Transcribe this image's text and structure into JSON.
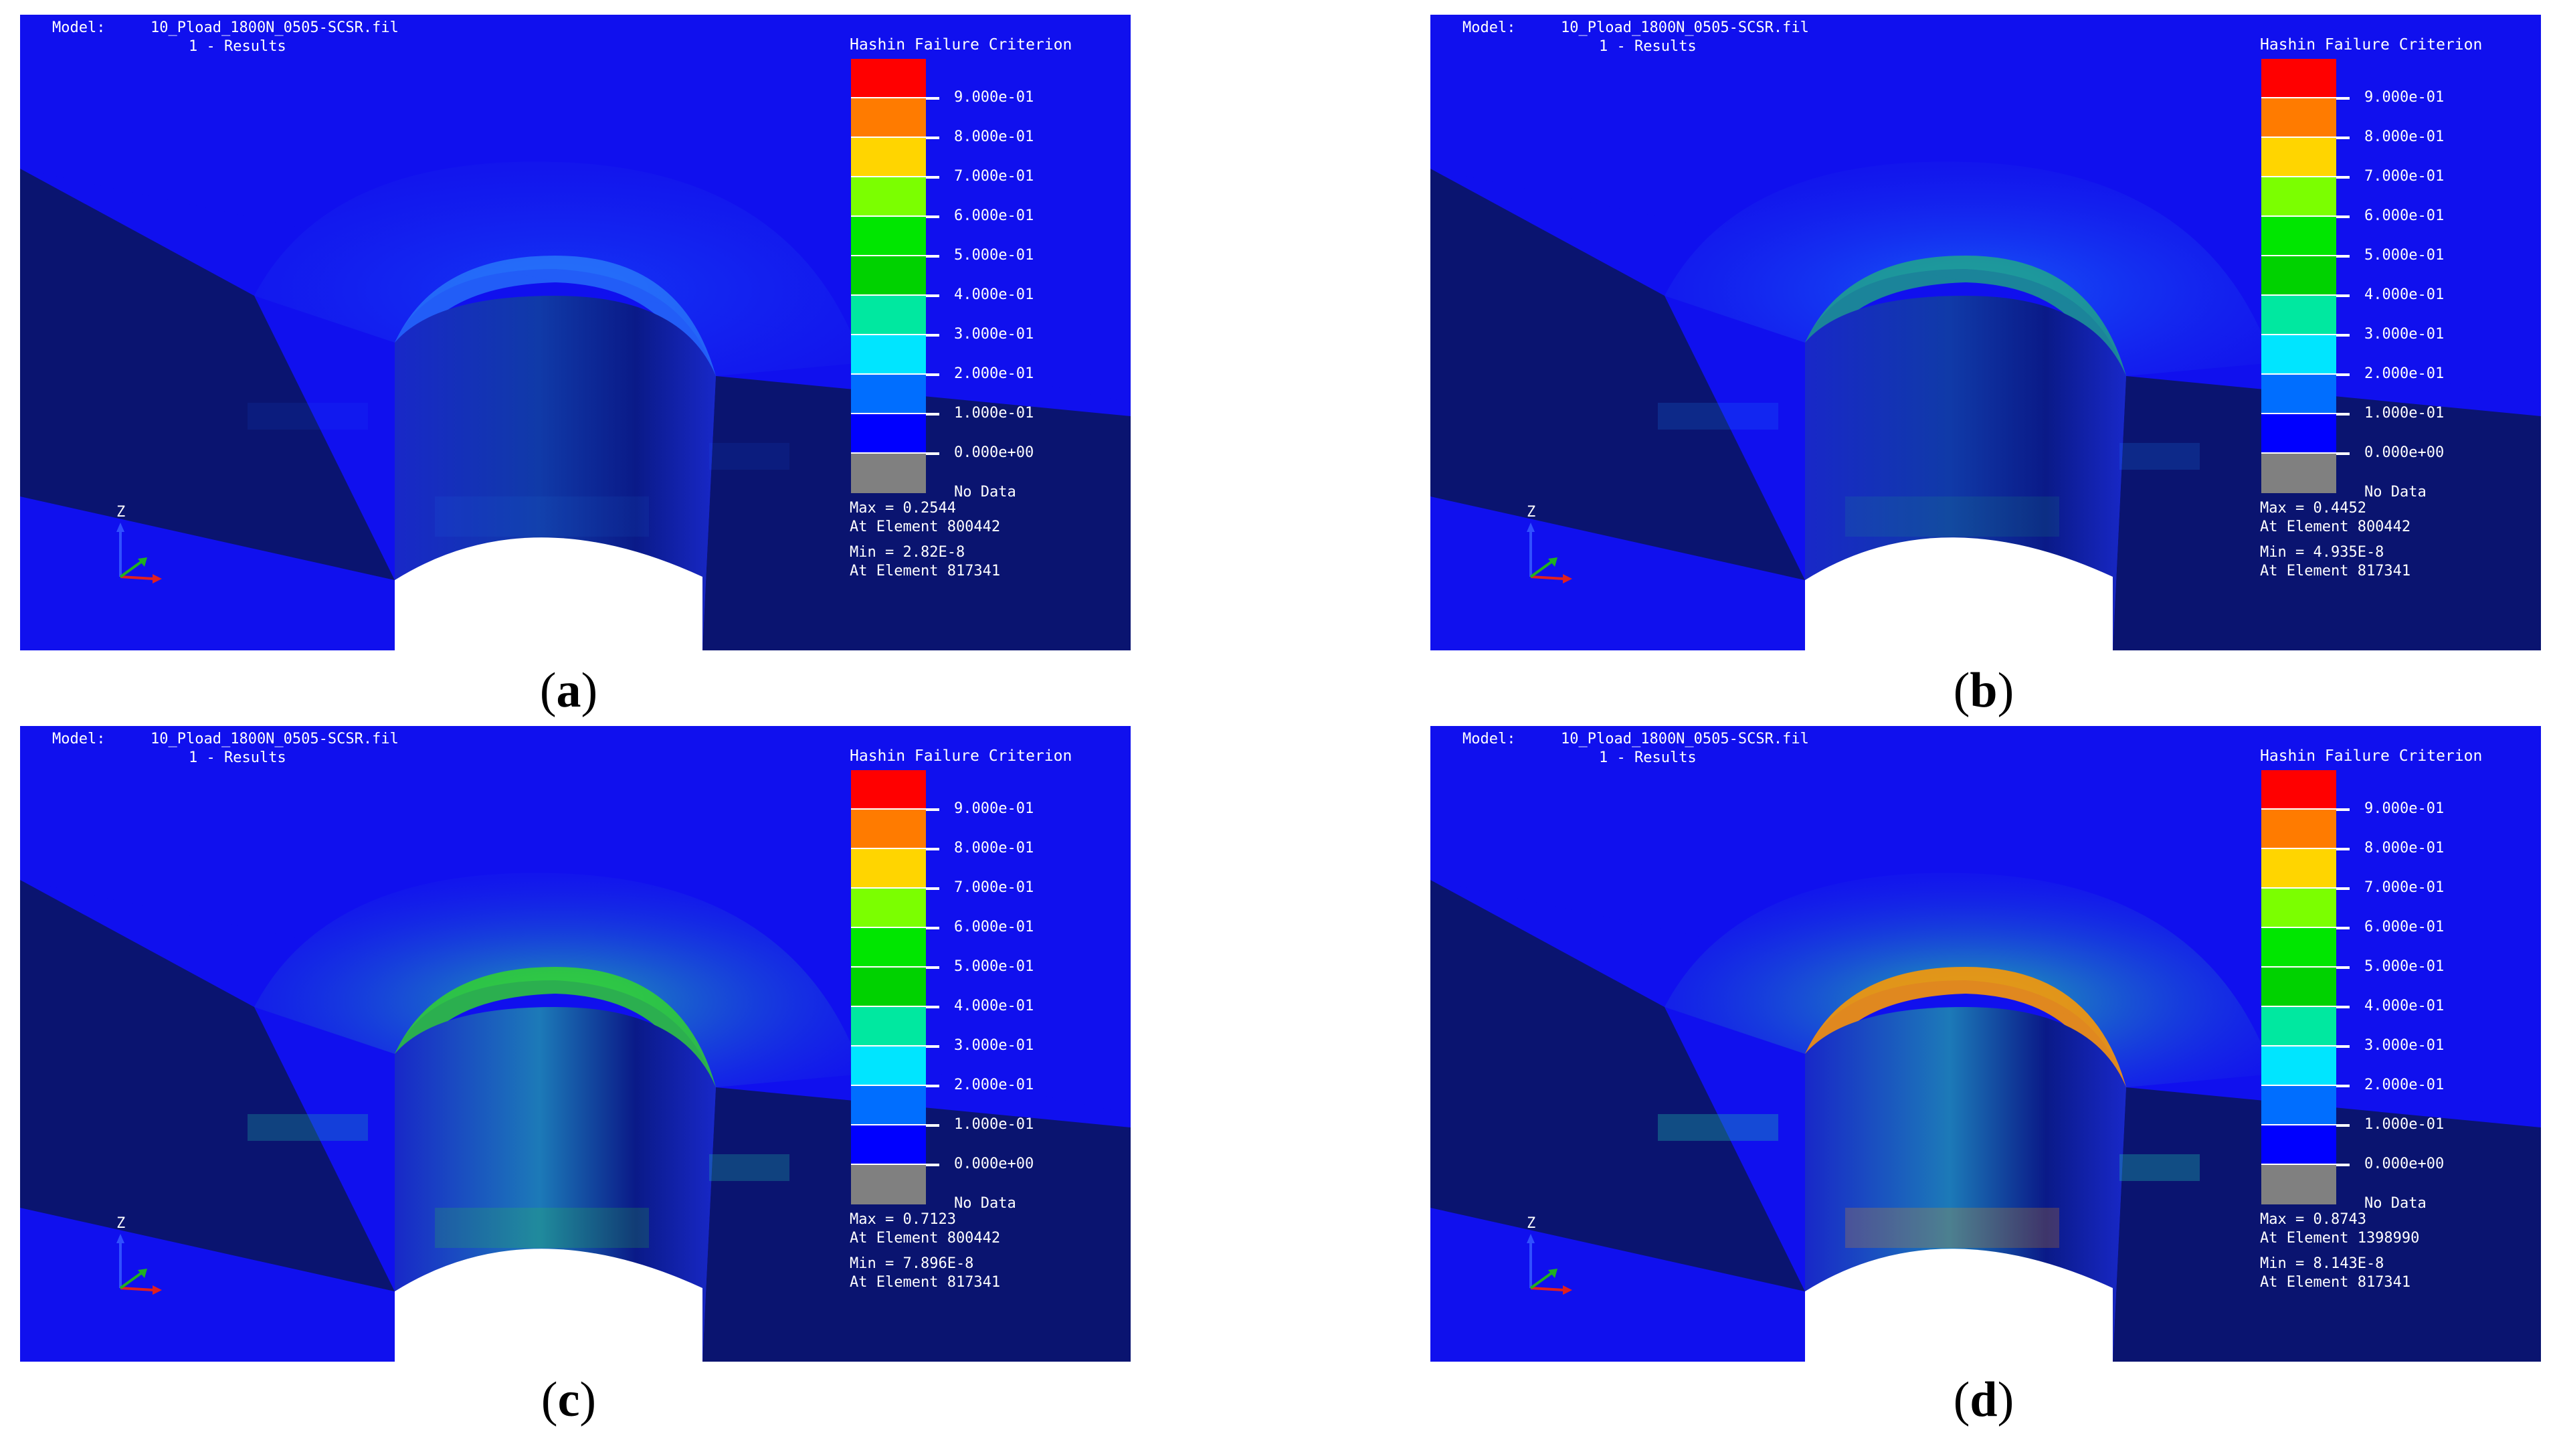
{
  "colors": {
    "background": "#1010ee",
    "dark_block": "#0a1470",
    "text": "#ffffff",
    "legend": [
      "#ff0000",
      "#ff7b00",
      "#ffd500",
      "#7bff00",
      "#00e600",
      "#00d200",
      "#00e8a0",
      "#00e5ff",
      "#006eff",
      "#0000ff",
      "#808080"
    ]
  },
  "legend_ticks": [
    "9.000e-01",
    "8.000e-01",
    "7.000e-01",
    "6.000e-01",
    "5.000e-01",
    "4.000e-01",
    "3.000e-01",
    "2.000e-01",
    "1.000e-01",
    "0.000e+00",
    "No Data"
  ],
  "panels": [
    {
      "id": "a",
      "model_label": "Model:",
      "model_name": "10_Pload_1800N_0505-SCSR.fil",
      "step_label": "1 - Results",
      "legend_title": "Hashin Failure Criterion",
      "max_line": "Max = 0.2544",
      "max_element": "At Element 800442",
      "min_line": "Min = 2.82E-8",
      "min_element": "At Element 817341",
      "caption": "a",
      "damage_level": 0.25
    },
    {
      "id": "b",
      "model_label": "Model:",
      "model_name": "10_Pload_1800N_0505-SCSR.fil",
      "step_label": "1 - Results",
      "legend_title": "Hashin Failure Criterion",
      "max_line": "Max = 0.4452",
      "max_element": "At Element 800442",
      "min_line": "Min = 4.935E-8",
      "min_element": "At Element 817341",
      "caption": "b",
      "damage_level": 0.45
    },
    {
      "id": "c",
      "model_label": "Model:",
      "model_name": "10_Pload_1800N_0505-SCSR.fil",
      "step_label": "1 - Results",
      "legend_title": "Hashin Failure Criterion",
      "max_line": "Max = 0.7123",
      "max_element": "At Element 800442",
      "min_line": "Min = 7.896E-8",
      "min_element": "At Element 817341",
      "caption": "c",
      "damage_level": 0.71
    },
    {
      "id": "d",
      "model_label": "Model:",
      "model_name": "10_Pload_1800N_0505-SCSR.fil",
      "step_label": "1 - Results",
      "legend_title": "Hashin Failure Criterion",
      "max_line": "Max = 0.8743",
      "max_element": "At Element 1398990",
      "min_line": "Min = 8.143E-8",
      "min_element": "At Element 817341",
      "caption": "d",
      "damage_level": 0.87
    }
  ],
  "axis_label": "Z"
}
